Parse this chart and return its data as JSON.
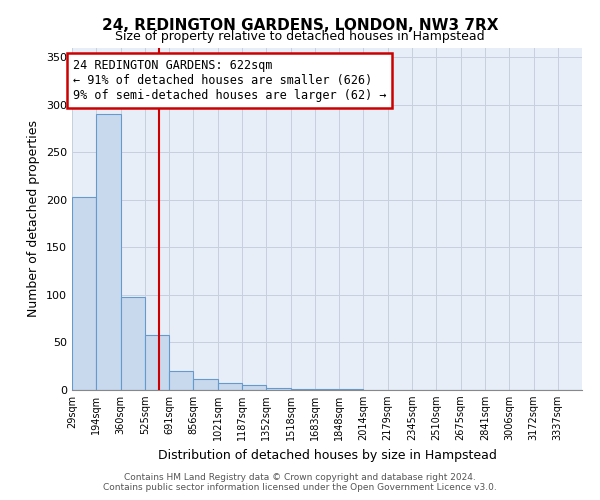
{
  "title": "24, REDINGTON GARDENS, LONDON, NW3 7RX",
  "subtitle": "Size of property relative to detached houses in Hampstead",
  "xlabel": "Distribution of detached houses by size in Hampstead",
  "ylabel": "Number of detached properties",
  "bin_labels": [
    "29sqm",
    "194sqm",
    "360sqm",
    "525sqm",
    "691sqm",
    "856sqm",
    "1021sqm",
    "1187sqm",
    "1352sqm",
    "1518sqm",
    "1683sqm",
    "1848sqm",
    "2014sqm",
    "2179sqm",
    "2345sqm",
    "2510sqm",
    "2675sqm",
    "2841sqm",
    "3006sqm",
    "3172sqm",
    "3337sqm"
  ],
  "bin_edges": [
    29,
    194,
    360,
    525,
    691,
    856,
    1021,
    1187,
    1352,
    1518,
    1683,
    1848,
    2014,
    2179,
    2345,
    2510,
    2675,
    2841,
    3006,
    3172,
    3337,
    3502
  ],
  "bar_heights": [
    203,
    290,
    98,
    58,
    20,
    12,
    7,
    5,
    2,
    1,
    1,
    1,
    0,
    0,
    0,
    0,
    0,
    0,
    0,
    0,
    0
  ],
  "bar_color": "#c8d9ee",
  "bar_edge_color": "#6699cc",
  "grid_color": "#c8d0e0",
  "background_color": "#e8eef8",
  "red_line_x": 622,
  "annotation_line1": "24 REDINGTON GARDENS: 622sqm",
  "annotation_line2": "← 91% of detached houses are smaller (626)",
  "annotation_line3": "9% of semi-detached houses are larger (62) →",
  "annotation_box_color": "#ffffff",
  "annotation_box_edge": "#cc0000",
  "footer_text": "Contains HM Land Registry data © Crown copyright and database right 2024.\nContains public sector information licensed under the Open Government Licence v3.0.",
  "ylim": [
    0,
    360
  ],
  "yticks": [
    0,
    50,
    100,
    150,
    200,
    250,
    300,
    350
  ],
  "title_fontsize": 11,
  "subtitle_fontsize": 9
}
